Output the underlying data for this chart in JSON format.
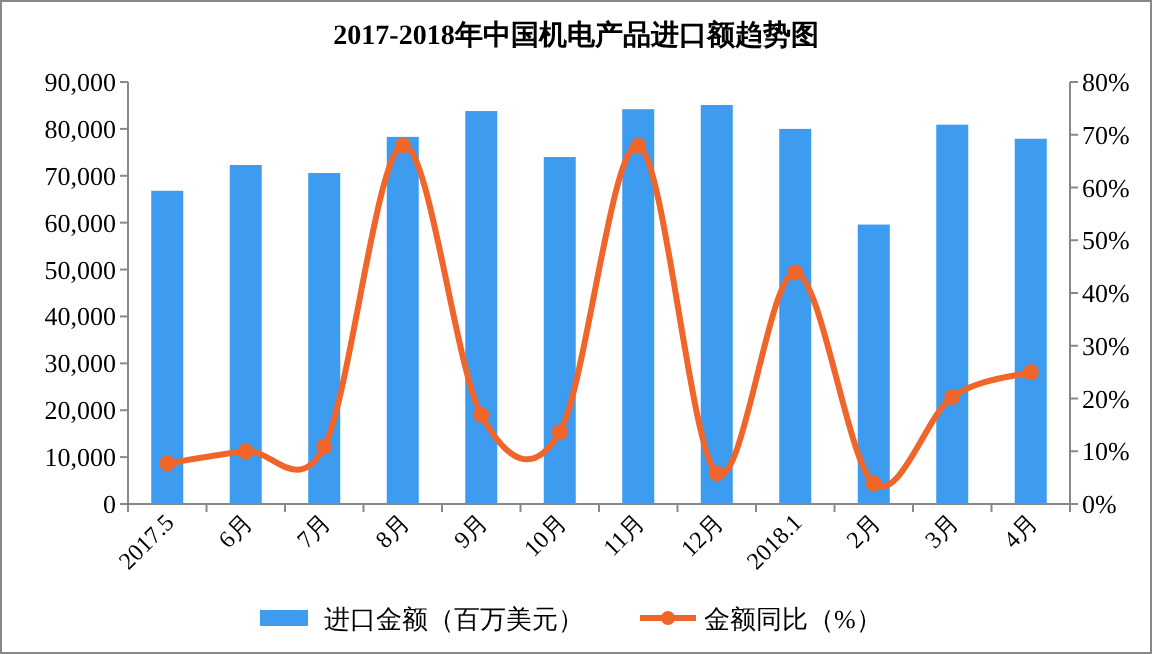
{
  "chart_data": {
    "type": "bar",
    "title": "2017-2018年中国机电产品进口额趋势图",
    "categories": [
      "2017.5",
      "6月",
      "7月",
      "8月",
      "9月",
      "10月",
      "11月",
      "12月",
      "2018.1",
      "2月",
      "3月",
      "4月"
    ],
    "series": [
      {
        "name": "进口金额（百万美元）",
        "color": "#3d9cf0",
        "values": [
          66800,
          72300,
          70600,
          78300,
          83800,
          74000,
          84200,
          85100,
          80000,
          59600,
          80900,
          77900
        ]
      },
      {
        "name": "金额同比（%）",
        "type": "line",
        "axis": "y2",
        "color": "#f0652a",
        "marker": "circle",
        "values": [
          7.7,
          10.0,
          10.9,
          68.0,
          16.9,
          13.6,
          67.9,
          5.8,
          43.9,
          3.9,
          20.3,
          25.0
        ]
      }
    ],
    "ylim": [
      0,
      90000
    ],
    "yticks": [
      {
        "value": 0,
        "label": "0"
      },
      {
        "value": 10000,
        "label": "10,000"
      },
      {
        "value": 20000,
        "label": "20,000"
      },
      {
        "value": 30000,
        "label": "30,000"
      },
      {
        "value": 40000,
        "label": "40,000"
      },
      {
        "value": 50000,
        "label": "50,000"
      },
      {
        "value": 60000,
        "label": "60,000"
      },
      {
        "value": 70000,
        "label": "70,000"
      },
      {
        "value": 80000,
        "label": "80,000"
      },
      {
        "value": 90000,
        "label": "90,000"
      }
    ],
    "y2lim": [
      0,
      80
    ],
    "y2ticks": [
      {
        "value": 0,
        "label": "0%"
      },
      {
        "value": 10,
        "label": "10%"
      },
      {
        "value": 20,
        "label": "20%"
      },
      {
        "value": 30,
        "label": "30%"
      },
      {
        "value": 40,
        "label": "40%"
      },
      {
        "value": 50,
        "label": "50%"
      },
      {
        "value": 60,
        "label": "60%"
      },
      {
        "value": 70,
        "label": "70%"
      },
      {
        "value": 80,
        "label": "80%"
      }
    ],
    "legend": "bottom",
    "grid": false
  }
}
